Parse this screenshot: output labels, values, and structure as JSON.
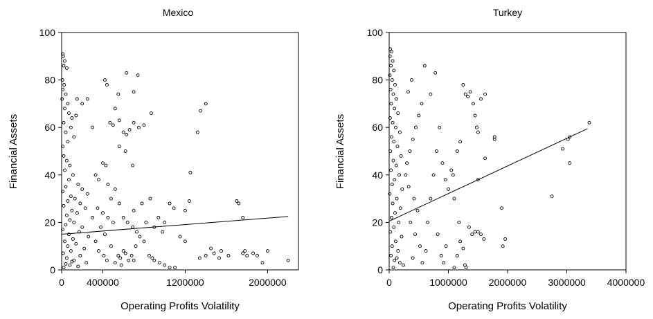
{
  "chart_data": [
    {
      "type": "scatter",
      "title": "Mexico",
      "xlabel": "Operating Profits Volatility",
      "ylabel": "Financial Assets",
      "xlim": [
        0,
        2300000
      ],
      "ylim": [
        0,
        100
      ],
      "xticks": [
        0,
        400000,
        1200000,
        2000000
      ],
      "xtick_labels": [
        "0",
        "400000",
        "1200000",
        "2000000"
      ],
      "yticks": [
        0,
        20,
        40,
        60,
        80,
        100
      ],
      "ytick_labels": [
        "0",
        "20",
        "40",
        "60",
        "80",
        "100"
      ],
      "grid": false,
      "marker": "open-circle",
      "fit_line": [
        [
          0,
          15
        ],
        [
          2200000,
          22.5
        ]
      ],
      "points": [
        [
          10000,
          91
        ],
        [
          15000,
          90
        ],
        [
          30000,
          88
        ],
        [
          20000,
          86
        ],
        [
          50000,
          85
        ],
        [
          8000,
          80
        ],
        [
          25000,
          78
        ],
        [
          12000,
          76
        ],
        [
          40000,
          74
        ],
        [
          5000,
          72
        ],
        [
          60000,
          70
        ],
        [
          30000,
          68
        ],
        [
          70000,
          66
        ],
        [
          100000,
          64
        ],
        [
          20000,
          62
        ],
        [
          90000,
          60
        ],
        [
          40000,
          58
        ],
        [
          120000,
          56
        ],
        [
          60000,
          54
        ],
        [
          10000,
          52
        ],
        [
          150000,
          72
        ],
        [
          200000,
          70
        ],
        [
          250000,
          72
        ],
        [
          140000,
          65
        ],
        [
          300000,
          60
        ],
        [
          20000,
          48
        ],
        [
          50000,
          46
        ],
        [
          80000,
          44
        ],
        [
          30000,
          42
        ],
        [
          110000,
          40
        ],
        [
          70000,
          38
        ],
        [
          160000,
          36
        ],
        [
          40000,
          35
        ],
        [
          200000,
          34
        ],
        [
          10000,
          33
        ],
        [
          250000,
          32
        ],
        [
          90000,
          31
        ],
        [
          130000,
          30
        ],
        [
          60000,
          29
        ],
        [
          180000,
          28
        ],
        [
          20000,
          27
        ],
        [
          230000,
          26
        ],
        [
          100000,
          25
        ],
        [
          150000,
          24
        ],
        [
          50000,
          23
        ],
        [
          300000,
          22
        ],
        [
          80000,
          21
        ],
        [
          120000,
          20
        ],
        [
          40000,
          19
        ],
        [
          200000,
          18
        ],
        [
          10000,
          17
        ],
        [
          170000,
          16
        ],
        [
          70000,
          15
        ],
        [
          260000,
          14
        ],
        [
          110000,
          13
        ],
        [
          30000,
          12
        ],
        [
          140000,
          11
        ],
        [
          60000,
          10
        ],
        [
          220000,
          9
        ],
        [
          90000,
          8
        ],
        [
          15000,
          7
        ],
        [
          180000,
          6
        ],
        [
          50000,
          5
        ],
        [
          120000,
          4
        ],
        [
          240000,
          3
        ],
        [
          80000,
          2
        ],
        [
          20000,
          1
        ],
        [
          160000,
          1.5
        ],
        [
          40000,
          2.5
        ],
        [
          100000,
          3.5
        ],
        [
          350000,
          26
        ],
        [
          400000,
          24
        ],
        [
          450000,
          22
        ],
        [
          380000,
          18
        ],
        [
          500000,
          20
        ],
        [
          420000,
          15
        ],
        [
          330000,
          12
        ],
        [
          480000,
          10
        ],
        [
          360000,
          8
        ],
        [
          410000,
          6
        ],
        [
          440000,
          4
        ],
        [
          520000,
          3
        ],
        [
          550000,
          6
        ],
        [
          600000,
          8
        ],
        [
          570000,
          5
        ],
        [
          650000,
          4
        ],
        [
          620000,
          7
        ],
        [
          680000,
          6
        ],
        [
          700000,
          4
        ],
        [
          580000,
          2
        ],
        [
          400000,
          45
        ],
        [
          430000,
          44
        ],
        [
          330000,
          40
        ],
        [
          360000,
          38
        ],
        [
          450000,
          36
        ],
        [
          520000,
          34
        ],
        [
          480000,
          30
        ],
        [
          560000,
          28
        ],
        [
          600000,
          22
        ],
        [
          640000,
          20
        ],
        [
          690000,
          18
        ],
        [
          730000,
          16
        ],
        [
          760000,
          14
        ],
        [
          800000,
          12
        ],
        [
          720000,
          10
        ],
        [
          850000,
          6
        ],
        [
          880000,
          5
        ],
        [
          900000,
          4
        ],
        [
          950000,
          3
        ],
        [
          1000000,
          2
        ],
        [
          1050000,
          1
        ],
        [
          1100000,
          1
        ],
        [
          820000,
          20
        ],
        [
          900000,
          18
        ],
        [
          980000,
          16
        ],
        [
          700000,
          25
        ],
        [
          780000,
          28
        ],
        [
          860000,
          30
        ],
        [
          940000,
          22
        ],
        [
          1000000,
          20
        ],
        [
          420000,
          80
        ],
        [
          440000,
          78
        ],
        [
          550000,
          74
        ],
        [
          630000,
          83
        ],
        [
          740000,
          82
        ],
        [
          700000,
          75
        ],
        [
          520000,
          68
        ],
        [
          470000,
          62
        ],
        [
          500000,
          61
        ],
        [
          560000,
          63
        ],
        [
          600000,
          58
        ],
        [
          630000,
          57
        ],
        [
          660000,
          59
        ],
        [
          700000,
          62
        ],
        [
          750000,
          60
        ],
        [
          800000,
          61
        ],
        [
          870000,
          66
        ],
        [
          560000,
          52
        ],
        [
          620000,
          50
        ],
        [
          690000,
          44
        ],
        [
          1050000,
          28
        ],
        [
          1090000,
          26
        ],
        [
          1200000,
          25
        ],
        [
          1250000,
          41
        ],
        [
          1320000,
          58
        ],
        [
          1350000,
          67
        ],
        [
          1400000,
          70
        ],
        [
          1240000,
          29
        ],
        [
          1150000,
          14
        ],
        [
          1200000,
          12
        ],
        [
          1340000,
          5
        ],
        [
          1400000,
          6
        ],
        [
          1450000,
          9
        ],
        [
          1480000,
          7
        ],
        [
          1530000,
          5
        ],
        [
          1550000,
          8
        ],
        [
          1700000,
          29
        ],
        [
          1720000,
          28
        ],
        [
          1760000,
          22
        ],
        [
          1760000,
          7
        ],
        [
          1800000,
          6
        ],
        [
          1860000,
          7
        ],
        [
          1900000,
          6
        ],
        [
          1950000,
          3
        ],
        [
          2000000,
          8
        ],
        [
          2200000,
          4
        ],
        [
          1780000,
          8
        ],
        [
          1620000,
          6
        ]
      ]
    },
    {
      "type": "scatter",
      "title": "Turkey",
      "xlabel": "Operating Profits Volatility",
      "ylabel": "Financial Assets",
      "xlim": [
        0,
        4000000
      ],
      "ylim": [
        0,
        100
      ],
      "xticks": [
        0,
        1000000,
        2000000,
        3000000,
        4000000
      ],
      "xtick_labels": [
        "0",
        "1000000",
        "2000000",
        "3000000",
        "4000000"
      ],
      "yticks": [
        0,
        20,
        40,
        60,
        80,
        100
      ],
      "ytick_labels": [
        "0",
        "20",
        "40",
        "60",
        "80",
        "100"
      ],
      "grid": false,
      "marker": "open-circle",
      "fit_line": [
        [
          0,
          20.5
        ],
        [
          3350000,
          59.5
        ]
      ],
      "points": [
        [
          20000,
          93
        ],
        [
          40000,
          92
        ],
        [
          15000,
          90
        ],
        [
          60000,
          88
        ],
        [
          30000,
          86
        ],
        [
          80000,
          84
        ],
        [
          10000,
          82
        ],
        [
          50000,
          80
        ],
        [
          100000,
          78
        ],
        [
          25000,
          76
        ],
        [
          70000,
          74
        ],
        [
          120000,
          72
        ],
        [
          35000,
          70
        ],
        [
          90000,
          68
        ],
        [
          150000,
          66
        ],
        [
          15000,
          64
        ],
        [
          60000,
          62
        ],
        [
          110000,
          60
        ],
        [
          180000,
          58
        ],
        [
          40000,
          56
        ],
        [
          80000,
          54
        ],
        [
          140000,
          52
        ],
        [
          20000,
          50
        ],
        [
          200000,
          48
        ],
        [
          70000,
          46
        ],
        [
          120000,
          44
        ],
        [
          30000,
          42
        ],
        [
          170000,
          40
        ],
        [
          90000,
          38
        ],
        [
          50000,
          36
        ],
        [
          220000,
          34
        ],
        [
          10000,
          32
        ],
        [
          130000,
          30
        ],
        [
          60000,
          28
        ],
        [
          190000,
          26
        ],
        [
          100000,
          24
        ],
        [
          40000,
          22
        ],
        [
          160000,
          20
        ],
        [
          80000,
          18
        ],
        [
          20000,
          16
        ],
        [
          210000,
          14
        ],
        [
          110000,
          12
        ],
        [
          50000,
          10
        ],
        [
          150000,
          8
        ],
        [
          30000,
          6
        ],
        [
          90000,
          4
        ],
        [
          240000,
          2
        ],
        [
          70000,
          1
        ],
        [
          180000,
          3
        ],
        [
          130000,
          5
        ],
        [
          300000,
          45
        ],
        [
          350000,
          50
        ],
        [
          400000,
          55
        ],
        [
          450000,
          60
        ],
        [
          500000,
          65
        ],
        [
          550000,
          70
        ],
        [
          320000,
          75
        ],
        [
          380000,
          80
        ],
        [
          600000,
          86
        ],
        [
          280000,
          40
        ],
        [
          330000,
          35
        ],
        [
          420000,
          30
        ],
        [
          480000,
          25
        ],
        [
          360000,
          20
        ],
        [
          440000,
          15
        ],
        [
          520000,
          10
        ],
        [
          400000,
          5
        ],
        [
          560000,
          3
        ],
        [
          620000,
          8
        ],
        [
          650000,
          20
        ],
        [
          700000,
          30
        ],
        [
          750000,
          40
        ],
        [
          800000,
          50
        ],
        [
          850000,
          60
        ],
        [
          900000,
          45
        ],
        [
          950000,
          38
        ],
        [
          780000,
          83
        ],
        [
          700000,
          74
        ],
        [
          820000,
          15
        ],
        [
          880000,
          6
        ],
        [
          920000,
          3
        ],
        [
          960000,
          10
        ],
        [
          1000000,
          34
        ],
        [
          1050000,
          42
        ],
        [
          1080000,
          40
        ],
        [
          1100000,
          30
        ],
        [
          1150000,
          50
        ],
        [
          1200000,
          54
        ],
        [
          1250000,
          78
        ],
        [
          1290000,
          74
        ],
        [
          1330000,
          73
        ],
        [
          1370000,
          75
        ],
        [
          1420000,
          70
        ],
        [
          1450000,
          65
        ],
        [
          1480000,
          60
        ],
        [
          1500000,
          58
        ],
        [
          1550000,
          72
        ],
        [
          1620000,
          74
        ],
        [
          1200000,
          12
        ],
        [
          1280000,
          2
        ],
        [
          1300000,
          1
        ],
        [
          1350000,
          18
        ],
        [
          1400000,
          15
        ],
        [
          1450000,
          16
        ],
        [
          1500000,
          16
        ],
        [
          1550000,
          15
        ],
        [
          1600000,
          13
        ],
        [
          1620000,
          47
        ],
        [
          1500000,
          38
        ],
        [
          1780000,
          55
        ],
        [
          1780000,
          56
        ],
        [
          1900000,
          26
        ],
        [
          1920000,
          10
        ],
        [
          1960000,
          13
        ],
        [
          2750000,
          31
        ],
        [
          2930000,
          51
        ],
        [
          3020000,
          55
        ],
        [
          3050000,
          56
        ],
        [
          3050000,
          45
        ],
        [
          3380000,
          62
        ],
        [
          1100000,
          1
        ],
        [
          1150000,
          6
        ],
        [
          1180000,
          20
        ],
        [
          1250000,
          9
        ]
      ]
    }
  ]
}
